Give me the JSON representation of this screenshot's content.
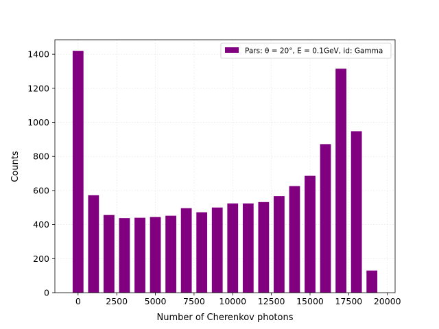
{
  "chart_data": {
    "type": "bar",
    "xlabel": "Number of Cherenkov photons",
    "ylabel": "Counts",
    "xlim": [
      -1500,
      20500
    ],
    "ylim": [
      0,
      1485
    ],
    "xticks": [
      0,
      2500,
      5000,
      7500,
      10000,
      12500,
      15000,
      17500,
      20000
    ],
    "xtick_labels": [
      "0",
      "2500",
      "5000",
      "7500",
      "10000",
      "12500",
      "15000",
      "17500",
      "20000"
    ],
    "yticks": [
      0,
      200,
      400,
      600,
      800,
      1000,
      1200,
      1400
    ],
    "ytick_labels": [
      "0",
      "200",
      "400",
      "600",
      "800",
      "1000",
      "1200",
      "1400"
    ],
    "grid": true,
    "legend_position": "top-right",
    "bar_width": 700,
    "series": [
      {
        "name": "Pars: θ = 20°, E = 0.1GeV, id: Gamma",
        "color": "#800080",
        "x": [
          0,
          1000,
          2000,
          3000,
          4000,
          5000,
          6000,
          7000,
          8000,
          9000,
          10000,
          11000,
          12000,
          13000,
          14000,
          15000,
          16000,
          17000,
          18000,
          19000
        ],
        "values": [
          1420,
          572,
          456,
          438,
          440,
          444,
          452,
          496,
          472,
          500,
          524,
          524,
          532,
          567,
          626,
          686,
          872,
          1315,
          948,
          130
        ]
      }
    ]
  }
}
